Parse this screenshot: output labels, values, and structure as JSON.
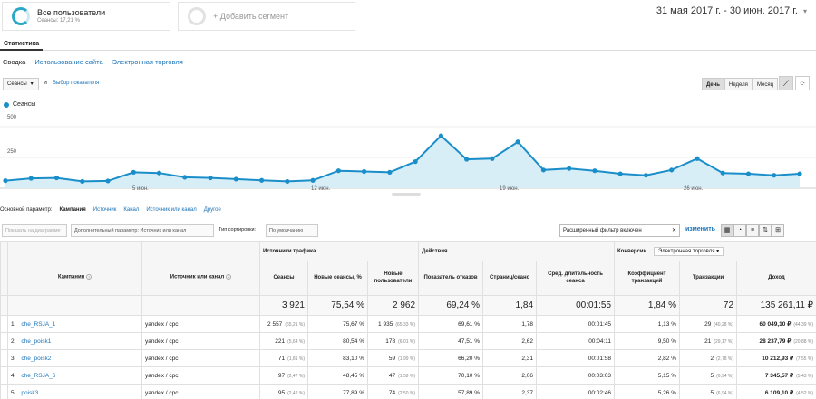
{
  "segments": {
    "all_users": "Все пользователи",
    "sessions_share": "Сеансы: 17,21 %",
    "add_segment": "+ Добавить сегмент"
  },
  "date_range": "31 мая 2017 г. - 30 июн. 2017 г.",
  "tabs": {
    "active": "Статистика"
  },
  "subnav": [
    "Сводка",
    "Использование сайта",
    "Электронная торговля"
  ],
  "controls": {
    "metric_select": "Сеансы",
    "and_label": "и",
    "choose_metric": "Выбор показателя",
    "granularity": [
      "День",
      "Неделя",
      "Месяц"
    ]
  },
  "legend": {
    "series": "Сеансы"
  },
  "axis": {
    "y_ticks": [
      "500",
      "250"
    ],
    "x_ticks": [
      "5 июн.",
      "12 июн.",
      "19 июн.",
      "26 июн."
    ]
  },
  "chart_data": {
    "type": "area",
    "series": [
      {
        "name": "Сеансы",
        "values": [
          50,
          65,
          68,
          45,
          48,
          105,
          100,
          72,
          68,
          60,
          52,
          45,
          52,
          115,
          110,
          105,
          175,
          345,
          190,
          195,
          305,
          120,
          130,
          115,
          95,
          85,
          120,
          195,
          100,
          95,
          85,
          95
        ]
      }
    ],
    "ylim": [
      0,
      500
    ],
    "x_ticks": [
      "5 июн.",
      "12 июн.",
      "19 июн.",
      "26 июн."
    ],
    "colors": {
      "line": "#1a8ec9",
      "fill": "#d8eef7"
    }
  },
  "dimension": {
    "label": "Основной параметр:",
    "active": "Кампания",
    "options": [
      "Источник",
      "Канал",
      "Источник или канал",
      "Другое"
    ]
  },
  "filters": {
    "plot_rows": "Показать на диаграмме",
    "secondary": "Дополнительный параметр: Источник или канал",
    "sort_type": "Тип сортировки:",
    "sort_value": "По умолчанию",
    "advanced_filter": "Расширенный фильтр включен",
    "change": "изменить"
  },
  "table": {
    "groups": {
      "traffic": "Источники трафика",
      "actions": "Действия",
      "conversions": "Конверсии",
      "conversion_select": "Электронная торговля"
    },
    "headers": [
      "Кампания",
      "Источник или канал",
      "Сеансы",
      "Новые сеансы, %",
      "Новые пользователи",
      "Показатель отказов",
      "Страниц/сеанс",
      "Сред. длительность сеанса",
      "Коэффициент транзакций",
      "Транзакции",
      "Доход"
    ],
    "totals": [
      "3 921",
      "75,54 %",
      "2 962",
      "69,24 %",
      "1,84",
      "00:01:55",
      "1,84 %",
      "72",
      "135 261,11 ₽"
    ],
    "rows": [
      {
        "n": "1.",
        "campaign": "che_RSJA_1",
        "source": "yandex / cpc",
        "sessions": "2 557",
        "sessions_pct": "(65,21 %)",
        "new_pct": "75,67 %",
        "new_users": "1 935",
        "new_users_pct": "(65,33 %)",
        "bounce": "69,61 %",
        "pages": "1,78",
        "duration": "00:01:45",
        "conv": "1,13 %",
        "trans": "29",
        "trans_pct": "(40,28 %)",
        "revenue": "60 049,10 ₽",
        "revenue_pct": "(44,39 %)"
      },
      {
        "n": "2.",
        "campaign": "che_poisk1",
        "source": "yandex / cpc",
        "sessions": "221",
        "sessions_pct": "(5,64 %)",
        "new_pct": "80,54 %",
        "new_users": "178",
        "new_users_pct": "(6,01 %)",
        "bounce": "47,51 %",
        "pages": "2,62",
        "duration": "00:04:11",
        "conv": "9,50 %",
        "trans": "21",
        "trans_pct": "(29,17 %)",
        "revenue": "28 237,79 ₽",
        "revenue_pct": "(20,88 %)"
      },
      {
        "n": "3.",
        "campaign": "che_poisk2",
        "source": "yandex / cpc",
        "sessions": "71",
        "sessions_pct": "(1,81 %)",
        "new_pct": "83,10 %",
        "new_users": "59",
        "new_users_pct": "(1,99 %)",
        "bounce": "66,20 %",
        "pages": "2,31",
        "duration": "00:01:58",
        "conv": "2,82 %",
        "trans": "2",
        "trans_pct": "(2,78 %)",
        "revenue": "10 212,93 ₽",
        "revenue_pct": "(7,55 %)"
      },
      {
        "n": "4.",
        "campaign": "che_RSJA_6",
        "source": "yandex / cpc",
        "sessions": "97",
        "sessions_pct": "(2,47 %)",
        "new_pct": "48,45 %",
        "new_users": "47",
        "new_users_pct": "(1,59 %)",
        "bounce": "70,10 %",
        "pages": "2,06",
        "duration": "00:03:03",
        "conv": "5,15 %",
        "trans": "5",
        "trans_pct": "(6,94 %)",
        "revenue": "7 345,57 ₽",
        "revenue_pct": "(5,43 %)"
      },
      {
        "n": "5.",
        "campaign": "poisk3",
        "source": "yandex / cpc",
        "sessions": "95",
        "sessions_pct": "(2,42 %)",
        "new_pct": "77,89 %",
        "new_users": "74",
        "new_users_pct": "(2,50 %)",
        "bounce": "57,89 %",
        "pages": "2,37",
        "duration": "00:02:46",
        "conv": "5,26 %",
        "trans": "5",
        "trans_pct": "(6,94 %)",
        "revenue": "6 109,10 ₽",
        "revenue_pct": "(4,52 %)"
      }
    ]
  }
}
